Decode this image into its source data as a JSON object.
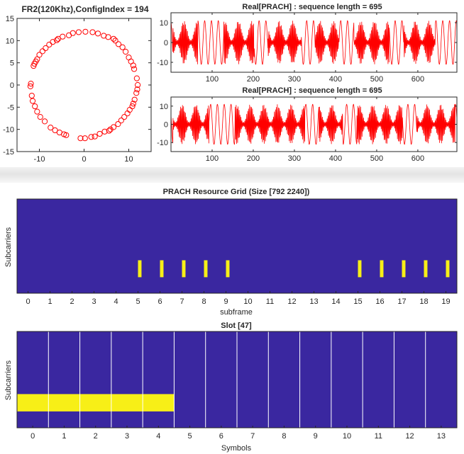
{
  "colors": {
    "axis": "#262626",
    "line": "#ff0000",
    "grid_bg": "#3a27a0",
    "grid_fg": "#f7ef17",
    "slot_lines": "#ffffff"
  },
  "chart_data": [
    {
      "id": "constellation",
      "type": "scatter",
      "title": "FR2(120Khz),ConfigIndex = 194",
      "xlabel": "",
      "ylabel": "",
      "xlim": [
        -15,
        15
      ],
      "ylim": [
        -15,
        15
      ],
      "xticks": [
        -10,
        0,
        10
      ],
      "yticks": [
        15,
        10,
        5,
        0,
        -5,
        -10,
        -15
      ],
      "marker": "circle-open",
      "points": [
        [
          0.3,
          12.0
        ],
        [
          -1.2,
          11.9
        ],
        [
          -2.5,
          11.7
        ],
        [
          -3.4,
          11.2
        ],
        [
          -4.8,
          10.9
        ],
        [
          -5.8,
          10.4
        ],
        [
          -7.0,
          9.7
        ],
        [
          -7.8,
          9.1
        ],
        [
          -8.6,
          8.3
        ],
        [
          -9.3,
          7.6
        ],
        [
          -10.0,
          6.8
        ],
        [
          -10.5,
          5.8
        ],
        [
          -11.1,
          4.8
        ],
        [
          -11.3,
          4.3
        ],
        [
          -11.9,
          0.3
        ],
        [
          -12.0,
          -0.3
        ],
        [
          -11.7,
          -2.4
        ],
        [
          -11.5,
          -3.6
        ],
        [
          -11.0,
          -4.8
        ],
        [
          -10.5,
          -6.0
        ],
        [
          -9.8,
          -7.2
        ],
        [
          -8.8,
          -8.2
        ],
        [
          -7.5,
          -9.6
        ],
        [
          -6.5,
          -10.2
        ],
        [
          -5.5,
          -10.7
        ],
        [
          -4.5,
          -11.1
        ],
        [
          -4.0,
          -11.3
        ],
        [
          -0.8,
          -12.0
        ],
        [
          0.2,
          -12.0
        ],
        [
          1.6,
          -11.7
        ],
        [
          2.4,
          -11.6
        ],
        [
          3.5,
          -11.0
        ],
        [
          4.6,
          -10.5
        ],
        [
          5.6,
          -10.3
        ],
        [
          6.6,
          -9.5
        ],
        [
          7.6,
          -8.8
        ],
        [
          8.3,
          -8.0
        ],
        [
          9.0,
          -7.2
        ],
        [
          9.7,
          -6.4
        ],
        [
          10.2,
          -5.6
        ],
        [
          10.8,
          -4.8
        ],
        [
          11.0,
          -4.2
        ],
        [
          11.3,
          -3.3
        ],
        [
          11.7,
          -1.8
        ],
        [
          11.9,
          -1.0
        ],
        [
          12.0,
          0.0
        ],
        [
          11.8,
          1.5
        ],
        [
          11.2,
          3.6
        ],
        [
          11.0,
          4.4
        ],
        [
          10.5,
          5.3
        ],
        [
          10.0,
          6.2
        ],
        [
          9.3,
          7.5
        ],
        [
          8.6,
          8.5
        ],
        [
          7.7,
          9.2
        ],
        [
          6.6,
          10.4
        ],
        [
          5.4,
          10.8
        ],
        [
          4.4,
          11.1
        ],
        [
          3.1,
          11.6
        ],
        [
          1.9,
          11.9
        ],
        [
          -6.1,
          10.1
        ],
        [
          -10.8,
          5.3
        ],
        [
          5.9,
          -10.0
        ],
        [
          7.0,
          10.0
        ]
      ]
    },
    {
      "id": "prach_top",
      "type": "line",
      "title": "Real[PRACH] : sequence length = 695",
      "xlim": [
        0,
        695
      ],
      "ylim": [
        -15,
        15
      ],
      "xticks": [
        100,
        200,
        300,
        400,
        500,
        600
      ],
      "yticks": [
        10,
        0,
        -10
      ],
      "bursts": [
        [
          5,
          65
        ],
        [
          128,
          202
        ],
        [
          236,
          318
        ],
        [
          350,
          408
        ],
        [
          445,
          530
        ],
        [
          566,
          642
        ]
      ],
      "amplitude": 11
    },
    {
      "id": "prach_bottom",
      "type": "line",
      "title": "Real[PRACH] : sequence length = 695",
      "xlim": [
        0,
        695
      ],
      "ylim": [
        -15,
        15
      ],
      "xticks": [
        100,
        200,
        300,
        400,
        500,
        600
      ],
      "yticks": [
        10,
        0,
        -10
      ],
      "bursts": [
        [
          5,
          92
        ],
        [
          155,
          325
        ],
        [
          360,
          418
        ],
        [
          452,
          562
        ],
        [
          598,
          690
        ]
      ],
      "amplitude": 11
    },
    {
      "id": "resource_grid",
      "type": "heatmap",
      "title": "PRACH Resource Grid (Size [792 2240])",
      "xlabel": "subframe",
      "ylabel": "Subcarriers",
      "xlim": [
        0,
        20
      ],
      "xticks": [
        0,
        1,
        2,
        3,
        4,
        5,
        6,
        7,
        8,
        9,
        10,
        11,
        12,
        13,
        14,
        15,
        16,
        17,
        18,
        19
      ],
      "ylim": [
        0,
        1
      ],
      "occupied_subframes": [
        5,
        6,
        7,
        8,
        9,
        15,
        16,
        17,
        18,
        19
      ],
      "occupied_offset": 0.5,
      "occupied_width": 0.16,
      "band": [
        0.17,
        0.35
      ]
    },
    {
      "id": "slot",
      "type": "heatmap",
      "title": "Slot [47]",
      "xlabel": "Symbols",
      "ylabel": "Subcarriers",
      "xlim": [
        0,
        14
      ],
      "xticks": [
        0,
        1,
        2,
        3,
        4,
        5,
        6,
        7,
        8,
        9,
        10,
        11,
        12,
        13
      ],
      "ylim": [
        0,
        1
      ],
      "occupied_symbols": [
        0,
        1,
        2,
        3,
        4
      ],
      "band": [
        0.17,
        0.35
      ]
    }
  ]
}
